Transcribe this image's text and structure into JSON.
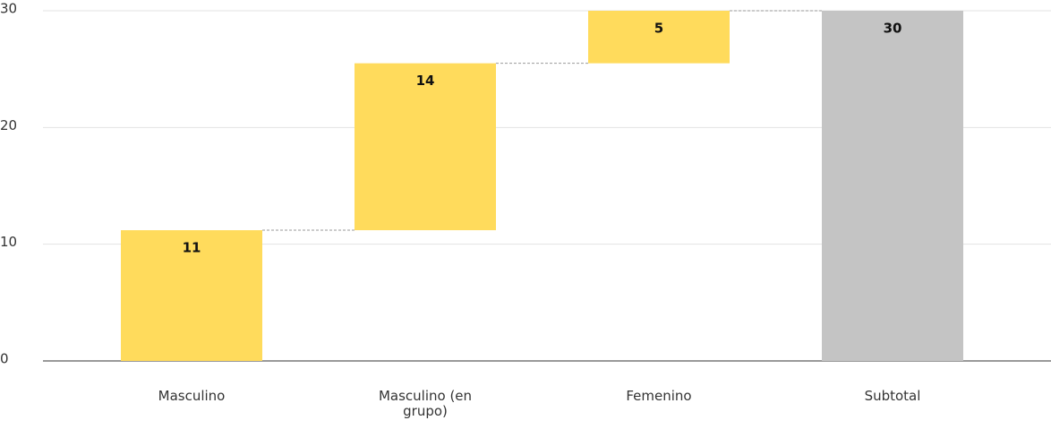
{
  "chart_data": {
    "type": "waterfall",
    "categories": [
      "Masculino",
      "Masculino (en grupo)",
      "Femenino",
      "Subtotal"
    ],
    "values": [
      11.2,
      14.3,
      4.5,
      30
    ],
    "value_labels": [
      "11",
      "14",
      "5",
      "30"
    ],
    "measure": [
      "relative",
      "relative",
      "relative",
      "total"
    ],
    "colors": [
      "#ffdb5c",
      "#ffdb5c",
      "#ffdb5c",
      "#c4c4c4"
    ],
    "ylim": [
      0,
      30
    ],
    "yticks": [
      0,
      10,
      20,
      30
    ],
    "grid": true
  }
}
